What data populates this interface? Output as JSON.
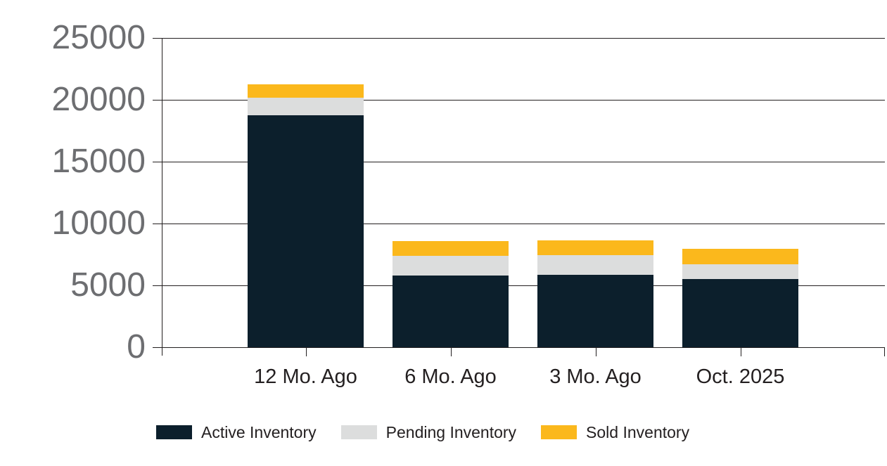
{
  "chart_data": {
    "type": "bar",
    "stacked": true,
    "title": "",
    "xlabel": "",
    "ylabel": "",
    "categories": [
      "12 Mo. Ago",
      "6 Mo. Ago",
      "3 Mo. Ago",
      "Oct. 2025"
    ],
    "series": [
      {
        "name": "Active Inventory",
        "color": "#0C1F2C",
        "values": [
          18750,
          5810,
          5870,
          5530
        ]
      },
      {
        "name": "Pending Inventory",
        "color": "#DCDDDD",
        "values": [
          1420,
          1560,
          1560,
          1180
        ]
      },
      {
        "name": "Sold Inventory",
        "color": "#FBB81C",
        "values": [
          1080,
          1190,
          1210,
          1250
        ]
      }
    ],
    "totals": [
      21250,
      8560,
      8640,
      7960
    ],
    "ylim": [
      0,
      25000
    ],
    "y_ticks": [
      0,
      5000,
      10000,
      15000,
      20000,
      25000
    ],
    "grid": true,
    "legend_position": "bottom",
    "colors": {
      "axis_line": "#231F20",
      "y_tick_label": "#6D6E71",
      "x_tick_label": "#231F20",
      "background": "#FFFFFF"
    }
  }
}
